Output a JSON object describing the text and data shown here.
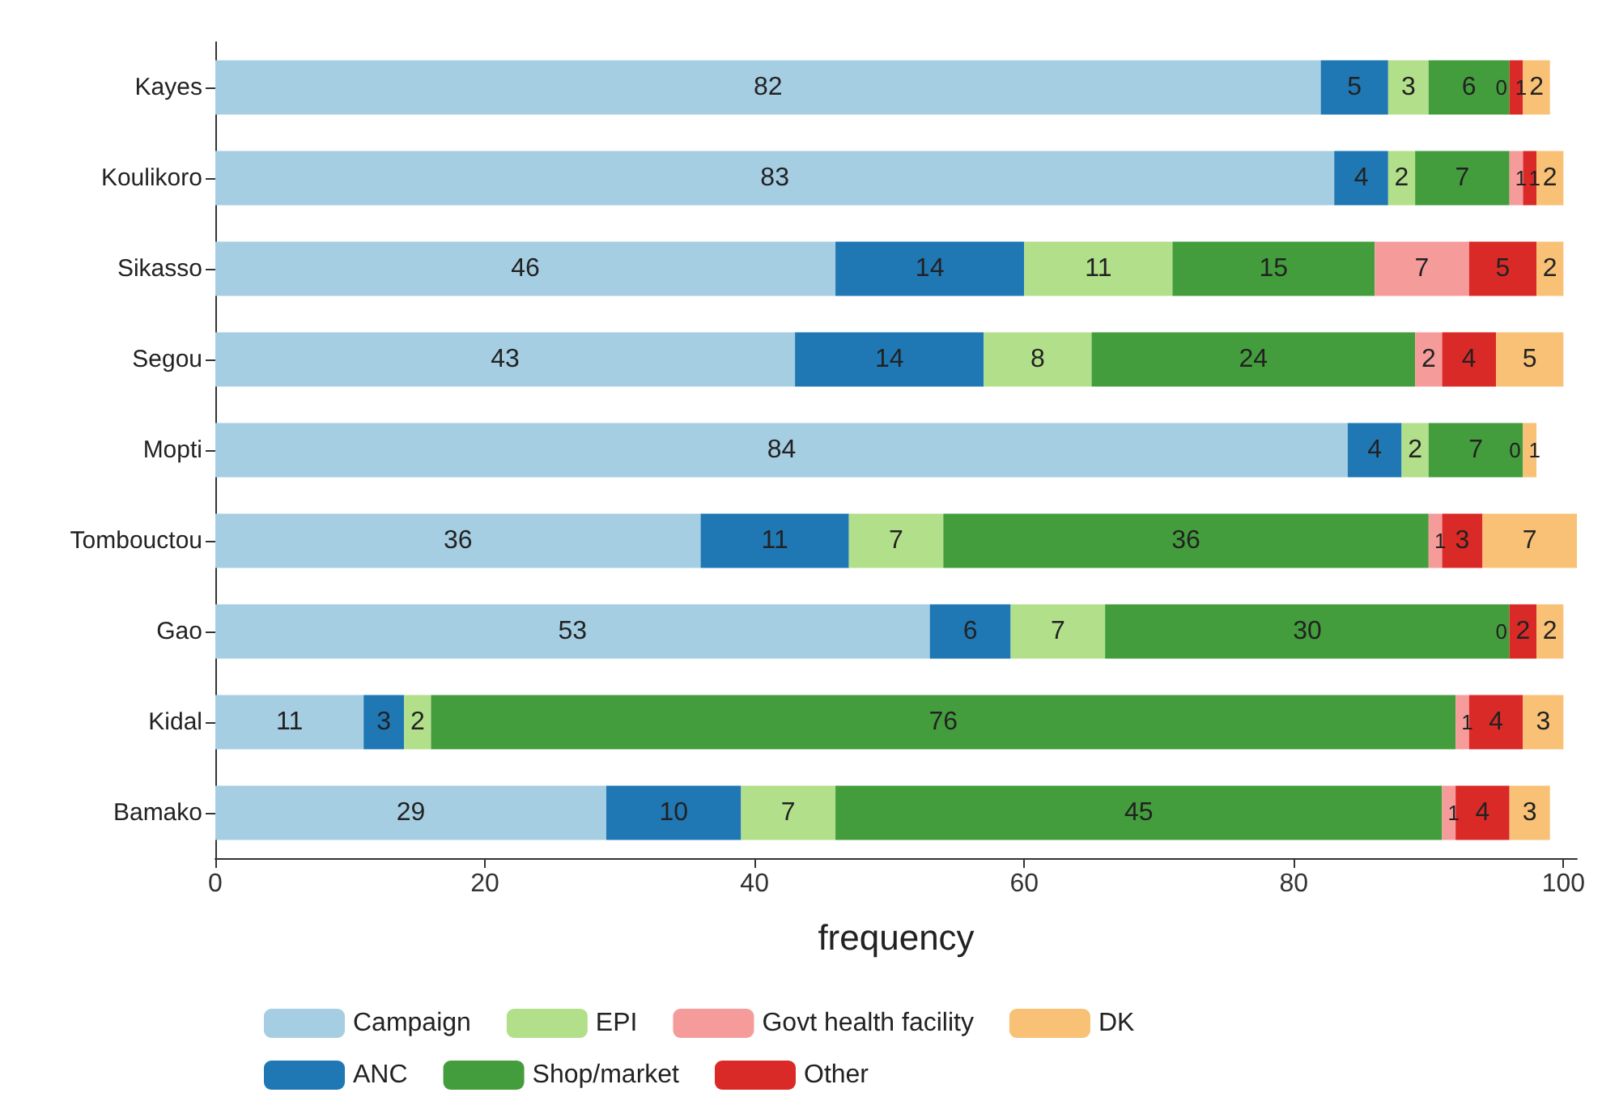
{
  "chart_data": {
    "type": "bar",
    "orientation": "horizontal",
    "stacked": true,
    "data_labels": true,
    "xlabel": "frequency",
    "xlim": [
      0,
      101
    ],
    "xticks": [
      0,
      20,
      40,
      60,
      80,
      100
    ],
    "grid": false,
    "legend": "bottom",
    "categories": [
      "Kayes",
      "Koulikoro",
      "Sikasso",
      "Segou",
      "Mopti",
      "Tombouctou",
      "Gao",
      "Kidal",
      "Bamako"
    ],
    "series": [
      {
        "name": "Campaign",
        "color": "#a6cee3",
        "values": [
          82,
          83,
          46,
          43,
          84,
          36,
          53,
          11,
          29
        ]
      },
      {
        "name": "ANC",
        "color": "#1f78b4",
        "values": [
          5,
          4,
          14,
          14,
          4,
          11,
          6,
          3,
          10
        ]
      },
      {
        "name": "EPI",
        "color": "#b2df8a",
        "values": [
          3,
          2,
          11,
          8,
          2,
          7,
          7,
          2,
          7
        ]
      },
      {
        "name": "Shop/market",
        "color": "#449d3c",
        "values": [
          6,
          7,
          15,
          24,
          7,
          36,
          30,
          76,
          45
        ]
      },
      {
        "name": "Govt health facility",
        "color": "#f59c9b",
        "values": [
          0,
          1,
          7,
          2,
          null,
          1,
          0,
          1,
          1
        ]
      },
      {
        "name": "Other",
        "color": "#da2a27",
        "values": [
          1,
          1,
          5,
          4,
          0,
          3,
          2,
          4,
          4
        ]
      },
      {
        "name": "DK",
        "color": "#f8c176",
        "values": [
          2,
          2,
          2,
          5,
          1,
          7,
          2,
          3,
          3
        ]
      }
    ]
  }
}
